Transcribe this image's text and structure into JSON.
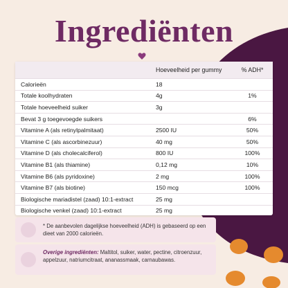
{
  "header": {
    "title": "Ingrediënten"
  },
  "table": {
    "columns": [
      "Hoeveelheid per gummy",
      "% ADH*"
    ],
    "rows": [
      [
        "Calorieën",
        "18",
        null
      ],
      [
        "Totale koolhydraten",
        "4g",
        "1%"
      ],
      [
        "Totale hoeveelheid suiker",
        "3g",
        null
      ],
      [
        "Bevat 3 g toegevoegde suikers",
        null,
        "6%"
      ],
      [
        "Vitamine A (als retinylpalmitaat)",
        "2500 IU",
        "50%"
      ],
      [
        "Vitamine C (als ascorbinezuur)",
        "40 mg",
        "50%"
      ],
      [
        "Vitamine D (als cholecalciferol)",
        "800 IU",
        "100%"
      ],
      [
        "Vitamine B1 (als thiamine)",
        "0,12 mg",
        "10%"
      ],
      [
        "Vitamine B6 (als pyridoxine)",
        "2 mg",
        "100%"
      ],
      [
        "Vitamine B7 (als biotine)",
        "150 mcg",
        "100%"
      ],
      [
        "Biologische mariadistel (zaad) 10:1-extract",
        "25 mg",
        null
      ],
      [
        "Biologische venkel (zaad) 10:1-extract",
        "25 mg",
        null
      ]
    ]
  },
  "footnote": "* De aanbevolen dagelijkse hoeveelheid (ADH) is gebaseerd op een dieet van 2000 calorieën.",
  "other": {
    "label": "Overige ingrediënten:",
    "text": "Maltitol, suiker, water, pectine, citroenzuur, appelzuur, natriumcitraat, ananassmaak, carnaubawas."
  }
}
